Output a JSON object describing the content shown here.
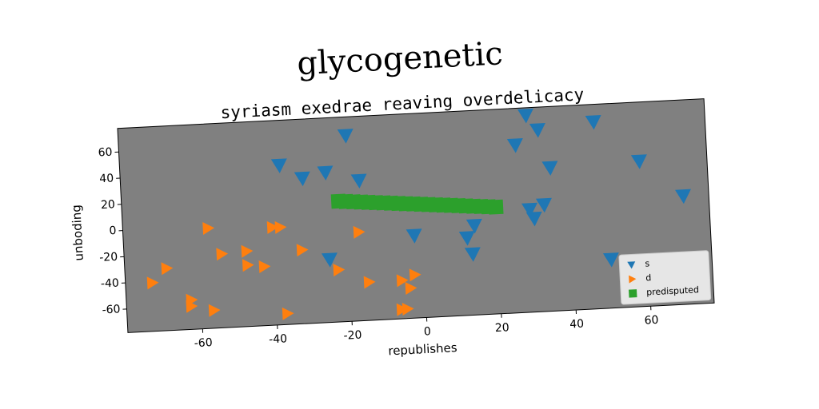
{
  "chart_data": {
    "type": "scatter",
    "title": "glycogenetic",
    "subtitle": "syriasm exedrae reaving overdelicacy",
    "x_label": "republishes",
    "y_label": "unboding",
    "xlim": [
      -80,
      77
    ],
    "ylim": [
      -78,
      78
    ],
    "xticks": [
      -60,
      -40,
      -20,
      0,
      20,
      40,
      60
    ],
    "yticks": [
      -60,
      -40,
      -20,
      0,
      20,
      40,
      60
    ],
    "legend": "lower right",
    "background": "#808080",
    "series": [
      {
        "name": "s",
        "color": "#1f77b4",
        "marker": "v",
        "x": [
          29.2,
          32.2,
          47.2,
          26,
          -19.2,
          -37.3,
          -31.3,
          -25.1,
          -16.2,
          35,
          58.9,
          70.2,
          32.9,
          29,
          30.1,
          14,
          -2.2,
          11.9,
          13.2,
          -25.1,
          50.1
        ],
        "values": [
          72.2,
          60.7,
          64.7,
          50,
          63.8,
          43.7,
          32.9,
          36.4,
          29,
          31.4,
          32.9,
          4.8,
          3.4,
          0.3,
          -6.6,
          -9.8,
          -15,
          -18.8,
          -31.3,
          -30,
          -40.8
        ]
      },
      {
        "name": "d",
        "color": "#ff7f0e",
        "marker": ">",
        "x": [
          -57.2,
          -40,
          -37.9,
          -17,
          -32.4,
          -53.9,
          -47.2,
          -47.1,
          -42.7,
          -68.8,
          -72.8,
          -62.6,
          -62.7,
          -56.7,
          -37.1,
          -22.9,
          -14.9,
          -6.1,
          -2.6,
          -3.9,
          -6.5,
          -5
        ],
        "values": [
          -1.5,
          -3.3,
          -3.6,
          -10.3,
          -21.7,
          -21.7,
          -20.5,
          -31.2,
          -32.9,
          -30.5,
          -41,
          -55.5,
          -60.4,
          -64.3,
          -69.6,
          -38.3,
          -48.8,
          -48.8,
          -45,
          -55,
          -70.9,
          -70.7
        ]
      },
      {
        "name": "predisputed",
        "color": "#2ca02c",
        "marker": "s",
        "x": [
          -22,
          -20,
          -18,
          -16,
          -14,
          -12,
          -10,
          -8,
          -6,
          -4,
          -2,
          0,
          2,
          4,
          6,
          8,
          10,
          12,
          14,
          16,
          18,
          20
        ],
        "values": [
          14,
          13.5,
          13,
          12.5,
          12,
          11.5,
          11,
          10.5,
          10,
          9.5,
          9,
          8.5,
          8,
          7.5,
          7,
          6.5,
          6,
          5.5,
          5,
          4.5,
          4,
          3.5
        ]
      }
    ]
  }
}
